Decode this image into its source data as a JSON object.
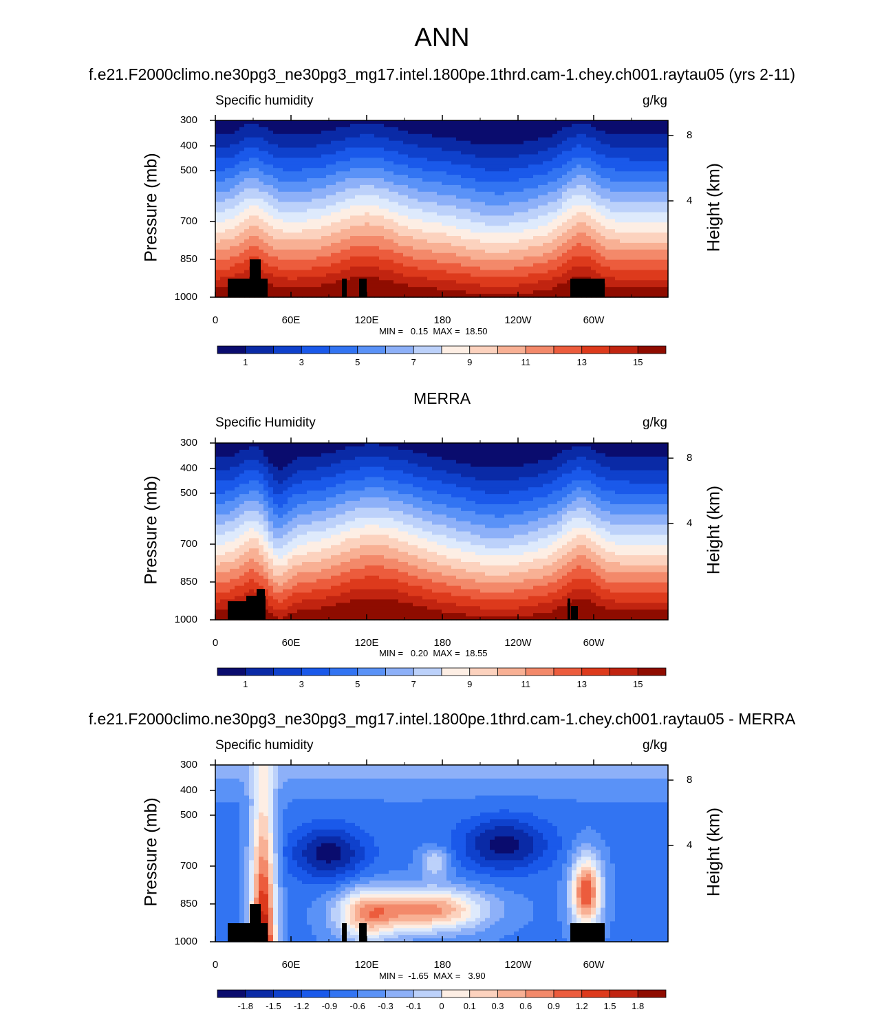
{
  "title": "ANN",
  "colors": {
    "seq": [
      "#0a0c6e",
      "#0a2aa6",
      "#0f41cc",
      "#1a59ea",
      "#3274f2",
      "#5a92f7",
      "#8db0f8",
      "#bcd1fa",
      "#deeafc",
      "#fdeee4",
      "#fcd2be",
      "#f8b094",
      "#f3896a",
      "#ec5c3d",
      "#dd3a1c",
      "#c12410",
      "#8f0c00"
    ],
    "div": [
      "#0a0c6e",
      "#0a2aa6",
      "#0f41cc",
      "#1a59ea",
      "#3274f2",
      "#5a92f7",
      "#8db0f8",
      "#bcd1fa",
      "#deeafc",
      "#fdeee4",
      "#fcd2be",
      "#f8b094",
      "#f3896a",
      "#ec5c3d",
      "#dd3a1c",
      "#c12410",
      "#8f0c00"
    ],
    "topography": "#000000"
  },
  "panels": [
    {
      "title": "f.e21.F2000climo.ne30pg3_ne30pg3_mg17.intel.1800pe.1thrd.cam-1.chey.ch001.raytau05 (yrs 2-11)",
      "variable_label": "Specific humidity",
      "units": "g/kg",
      "min_max_text": "MIN =   0.15  MAX =  18.50",
      "ylabel": "Pressure (mb)",
      "ylabel_right": "Height (km)",
      "yticks": [
        "300",
        "400",
        "500",
        "700",
        "850",
        "1000"
      ],
      "height_ticks": [
        "8",
        "4"
      ],
      "xticks": [
        "0",
        "60E",
        "120E",
        "180",
        "120W",
        "60W"
      ],
      "colorbar": [
        "1",
        "3",
        "5",
        "7",
        "9",
        "11",
        "13",
        "15"
      ]
    },
    {
      "title": "MERRA",
      "variable_label": "Specific Humidity",
      "units": "g/kg",
      "min_max_text": "MIN =   0.20  MAX =  18.55",
      "ylabel": "Pressure (mb)",
      "ylabel_right": "Height (km)",
      "yticks": [
        "300",
        "400",
        "500",
        "700",
        "850",
        "1000"
      ],
      "height_ticks": [
        "8",
        "4"
      ],
      "xticks": [
        "0",
        "60E",
        "120E",
        "180",
        "120W",
        "60W"
      ],
      "colorbar": [
        "1",
        "3",
        "5",
        "7",
        "9",
        "11",
        "13",
        "15"
      ]
    },
    {
      "title": "f.e21.F2000climo.ne30pg3_ne30pg3_mg17.intel.1800pe.1thrd.cam-1.chey.ch001.raytau05 - MERRA",
      "variable_label": "Specific humidity",
      "units": "g/kg",
      "min_max_text": "MIN =  -1.65  MAX =   3.90",
      "ylabel": "Pressure (mb)",
      "ylabel_right": "Height (km)",
      "yticks": [
        "300",
        "400",
        "500",
        "700",
        "850",
        "1000"
      ],
      "height_ticks": [
        "8",
        "4"
      ],
      "xticks": [
        "0",
        "60E",
        "120E",
        "180",
        "120W",
        "60W"
      ],
      "colorbar": [
        "-1.8",
        "-1.5",
        "-1.2",
        "-0.9",
        "-0.6",
        "-0.3",
        "-0.1",
        "0",
        "0.1",
        "0.3",
        "0.6",
        "0.9",
        "1.2",
        "1.5",
        "1.8"
      ]
    }
  ],
  "chart_data": [
    {
      "type": "heatmap",
      "title": "f.e21.F2000climo.ne30pg3_ne30pg3_mg17.intel.1800pe.1thrd.cam-1.chey.ch001.raytau05 (yrs 2-11)",
      "variable": "Specific humidity",
      "units": "g/kg",
      "x_label_values": [
        0,
        60,
        120,
        180,
        240,
        300
      ],
      "x_labels": [
        "0",
        "60E",
        "120E",
        "180",
        "120W",
        "60W"
      ],
      "xlim": [
        0,
        360
      ],
      "y_pressure_ticks": [
        300,
        400,
        500,
        700,
        850,
        1000
      ],
      "ylim": [
        1000,
        300
      ],
      "height_km_ticks": [
        8,
        4
      ],
      "min": 0.15,
      "max": 18.5,
      "levels": [
        0.5,
        1,
        2,
        3,
        4,
        5,
        6,
        7,
        8,
        9,
        10,
        11,
        12,
        13,
        14,
        15
      ],
      "values_description": "zonal cross section; contour field rendered approximately"
    },
    {
      "type": "heatmap",
      "title": "MERRA",
      "variable": "Specific Humidity",
      "units": "g/kg",
      "x_label_values": [
        0,
        60,
        120,
        180,
        240,
        300
      ],
      "x_labels": [
        "0",
        "60E",
        "120E",
        "180",
        "120W",
        "60W"
      ],
      "xlim": [
        0,
        360
      ],
      "y_pressure_ticks": [
        300,
        400,
        500,
        700,
        850,
        1000
      ],
      "ylim": [
        1000,
        300
      ],
      "height_km_ticks": [
        8,
        4
      ],
      "min": 0.2,
      "max": 18.55,
      "levels": [
        0.5,
        1,
        2,
        3,
        4,
        5,
        6,
        7,
        8,
        9,
        10,
        11,
        12,
        13,
        14,
        15
      ]
    },
    {
      "type": "heatmap",
      "title": "f.e21.F2000climo.ne30pg3_ne30pg3_mg17.intel.1800pe.1thrd.cam-1.chey.ch001.raytau05 - MERRA",
      "variable": "Specific humidity",
      "units": "g/kg",
      "x_label_values": [
        0,
        60,
        120,
        180,
        240,
        300
      ],
      "x_labels": [
        "0",
        "60E",
        "120E",
        "180",
        "120W",
        "60W"
      ],
      "xlim": [
        0,
        360
      ],
      "y_pressure_ticks": [
        300,
        400,
        500,
        700,
        850,
        1000
      ],
      "ylim": [
        1000,
        300
      ],
      "height_km_ticks": [
        8,
        4
      ],
      "min": -1.65,
      "max": 3.9,
      "levels": [
        -1.8,
        -1.5,
        -1.2,
        -0.9,
        -0.6,
        -0.3,
        -0.1,
        0,
        0.1,
        0.3,
        0.6,
        0.9,
        1.2,
        1.5,
        1.8
      ]
    }
  ]
}
